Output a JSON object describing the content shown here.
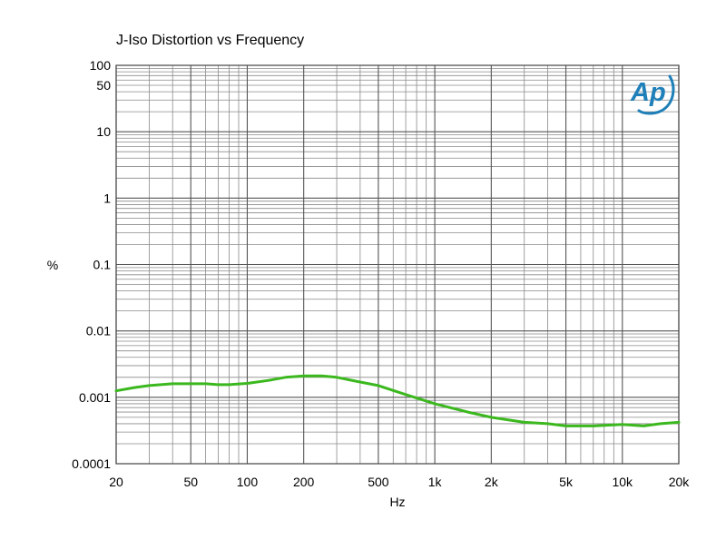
{
  "chart_data": {
    "type": "line",
    "title": "J-Iso Distortion vs Frequency",
    "xlabel": "Hz",
    "ylabel": "%",
    "x_scale": "log",
    "y_scale": "log",
    "xlim": [
      20,
      20000
    ],
    "ylim": [
      0.0001,
      100
    ],
    "grid": true,
    "x_ticks": [
      20,
      50,
      100,
      200,
      500,
      1000,
      2000,
      5000,
      10000,
      20000
    ],
    "x_tick_labels": [
      "20",
      "50",
      "100",
      "200",
      "500",
      "1k",
      "2k",
      "5k",
      "10k",
      "20k"
    ],
    "y_ticks": [
      0.0001,
      0.001,
      0.01,
      0.1,
      1,
      10,
      50,
      100
    ],
    "y_tick_labels": [
      "0.0001",
      "0.001",
      "0.01",
      "0.1",
      "1",
      "10",
      "50",
      "100"
    ],
    "series": [
      {
        "color": "#3cb81f",
        "x": [
          20,
          25,
          30,
          40,
          50,
          60,
          70,
          80,
          100,
          130,
          160,
          200,
          250,
          300,
          400,
          500,
          700,
          1000,
          1500,
          2000,
          3000,
          4000,
          5000,
          7000,
          10000,
          13000,
          16000,
          20000
        ],
        "y": [
          0.00125,
          0.0014,
          0.0015,
          0.0016,
          0.0016,
          0.0016,
          0.00155,
          0.00155,
          0.00162,
          0.0018,
          0.002,
          0.0021,
          0.0021,
          0.002,
          0.0017,
          0.0015,
          0.0011,
          0.0008,
          0.0006,
          0.0005,
          0.00042,
          0.0004,
          0.00037,
          0.00037,
          0.00039,
          0.00037,
          0.0004,
          0.00042
        ]
      }
    ]
  },
  "logo": {
    "text": "Ap",
    "color": "#1f7fb8"
  }
}
